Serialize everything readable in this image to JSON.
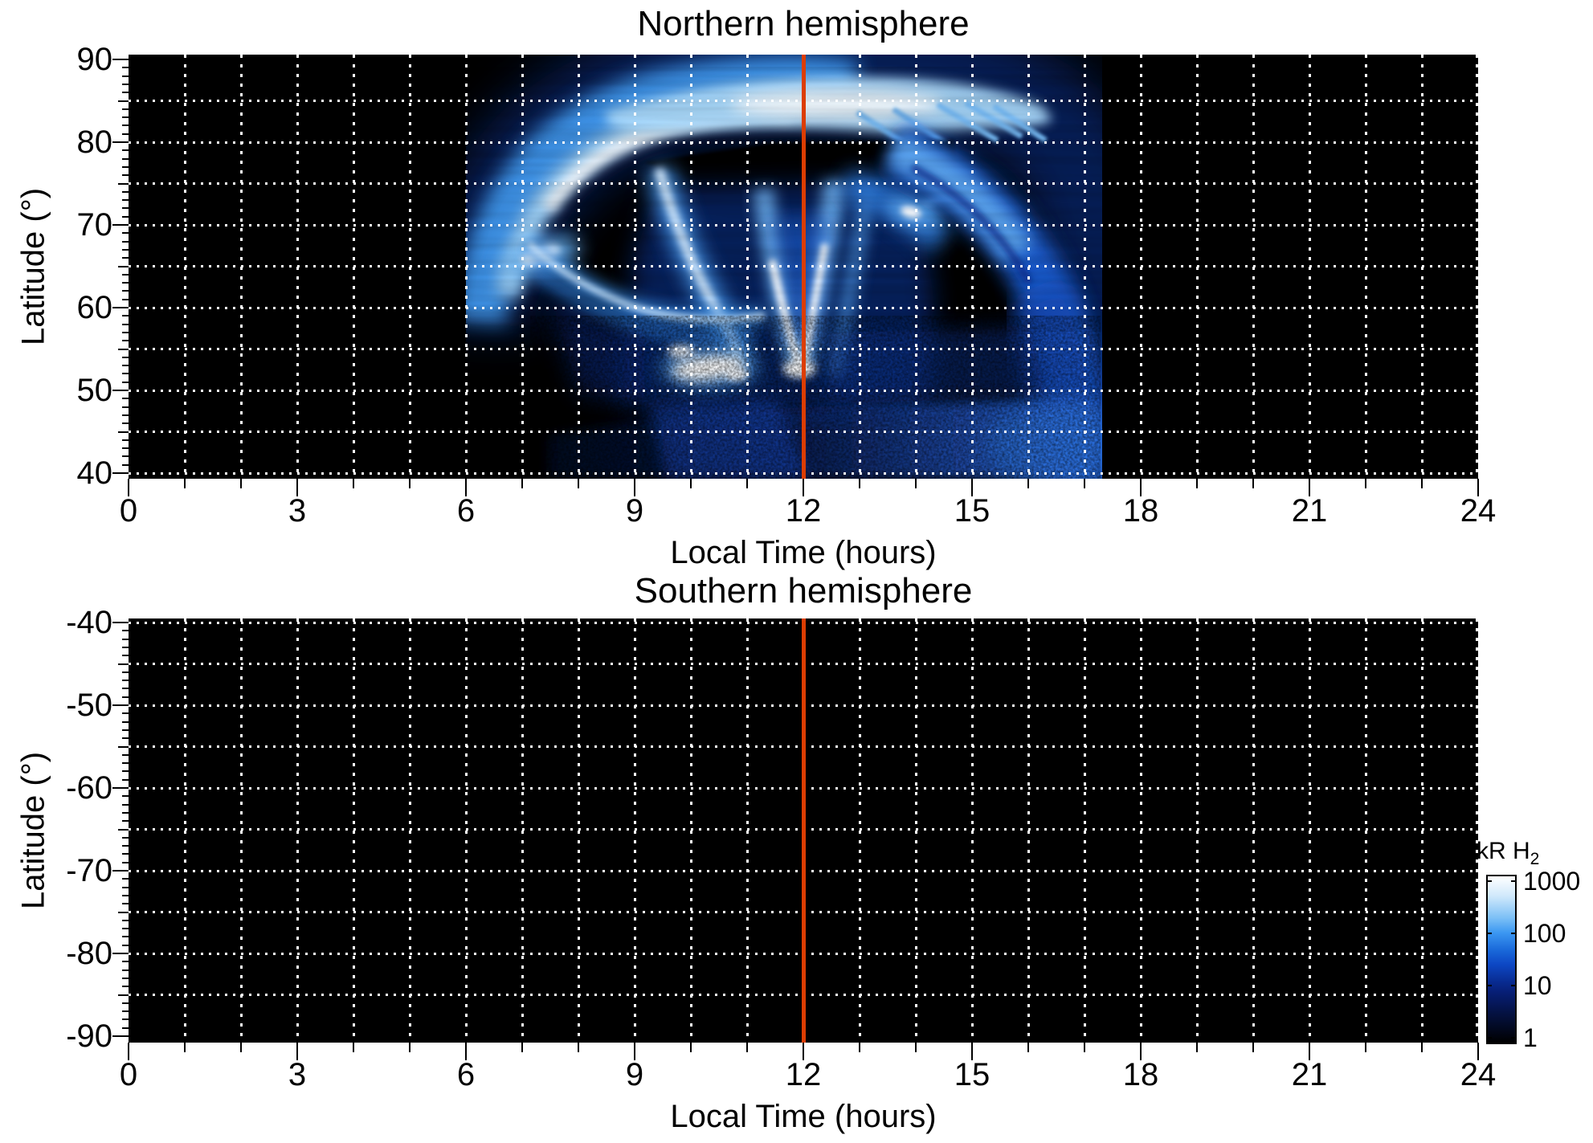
{
  "figure": {
    "kind": "two-panel auroral emission heatmap",
    "background_color": "#ffffff",
    "plot_background_color": "#000000",
    "grid_color": "#ffffff",
    "marker_line_color": "#dc3d02"
  },
  "panels": [
    {
      "id": "north",
      "title": "Northern hemisphere",
      "xlabel": "Local Time (hours)",
      "ylabel": "Latitude (°)",
      "x_tick_labels": [
        "0",
        "3",
        "6",
        "9",
        "12",
        "15",
        "18",
        "21",
        "24"
      ],
      "x_tick_values": [
        0,
        3,
        6,
        9,
        12,
        15,
        18,
        21,
        24
      ],
      "y_tick_labels": [
        "90",
        "80",
        "70",
        "60",
        "50",
        "40"
      ],
      "y_tick_values": [
        90,
        80,
        70,
        60,
        50,
        40
      ],
      "grid_lats": [
        85,
        80,
        75,
        70,
        65,
        60,
        55,
        50,
        45,
        40
      ],
      "marker_line_hour": 12
    },
    {
      "id": "south",
      "title": "Southern hemisphere",
      "xlabel": "Local Time (hours)",
      "ylabel": "Latitude (°)",
      "x_tick_labels": [
        "0",
        "3",
        "6",
        "9",
        "12",
        "15",
        "18",
        "21",
        "24"
      ],
      "x_tick_values": [
        0,
        3,
        6,
        9,
        12,
        15,
        18,
        21,
        24
      ],
      "y_tick_labels": [
        "-40",
        "-50",
        "-60",
        "-70",
        "-80",
        "-90"
      ],
      "y_tick_values": [
        -40,
        -50,
        -60,
        -70,
        -80,
        -90
      ],
      "grid_lats": [
        -40,
        -45,
        -50,
        -55,
        -60,
        -65,
        -70,
        -75,
        -80,
        -85
      ],
      "marker_line_hour": 12
    }
  ],
  "colorbar": {
    "title_main": "kR H",
    "title_subscript": "2",
    "tick_labels": [
      "1000",
      "100",
      "10",
      "1"
    ],
    "scale": "log",
    "min": 1,
    "max": 1000
  },
  "chart_data": [
    {
      "type": "heatmap",
      "title": "Northern hemisphere",
      "xlabel": "Local Time (hours)",
      "ylabel": "Latitude (°)",
      "x_range": [
        0,
        24
      ],
      "y_range": [
        40,
        90
      ],
      "x_grid_step_hours": 1,
      "y_grid_step_deg": 5,
      "grid": "white dotted",
      "value_units": "kR H2 (log color scale, 1 to 1000)",
      "vertical_marker_at_hour": 12,
      "features": [
        {
          "name": "dawn-side auroral oval arc",
          "local_time": [
            6.1,
            10.5
          ],
          "latitude": [
            57,
            85
          ],
          "peak_kR": 1000
        },
        {
          "name": "polar fan band along top",
          "local_time": [
            8.5,
            14.8
          ],
          "latitude": [
            82,
            88
          ],
          "peak_kR": 600
        },
        {
          "name": "dark gap inside oval",
          "local_time": [
            9.7,
            14.6
          ],
          "latitude": [
            75.5,
            79.5
          ],
          "peak_kR": 0
        },
        {
          "name": "bright knot with filament",
          "local_time": [
            7.1,
            9.5
          ],
          "latitude": [
            57,
            68
          ],
          "peak_kR": 1000
        },
        {
          "name": "central bright V-shaped arcs",
          "local_time": [
            9.5,
            13.0
          ],
          "latitude": [
            50,
            76
          ],
          "peak_kR": 1000
        },
        {
          "name": "isolated bright spot",
          "local_time": [
            13.7,
            14.3
          ],
          "latitude": [
            70,
            73
          ],
          "peak_kR": 800
        },
        {
          "name": "dusk-side descending striated band",
          "local_time": [
            13.3,
            17.3
          ],
          "latitude": [
            40,
            78
          ],
          "peak_kR": 150
        },
        {
          "name": "diffuse speckled low-latitude emission",
          "local_time": [
            9.0,
            17.3
          ],
          "latitude": [
            40,
            52
          ],
          "peak_kR": 30
        },
        {
          "name": "sharp emission cutoff",
          "local_time": [
            17.3,
            17.3
          ],
          "latitude": [
            40,
            80
          ],
          "peak_kR": 0
        },
        {
          "name": "no emission",
          "local_time": [
            17.3,
            24.0
          ],
          "latitude": [
            40,
            90
          ],
          "peak_kR": 0
        },
        {
          "name": "no emission",
          "local_time": [
            0.0,
            6.1
          ],
          "latitude": [
            40,
            90
          ],
          "peak_kR": 0
        }
      ]
    },
    {
      "type": "heatmap",
      "title": "Southern hemisphere",
      "xlabel": "Local Time (hours)",
      "ylabel": "Latitude (°)",
      "x_range": [
        0,
        24
      ],
      "y_range": [
        -90,
        -40
      ],
      "x_grid_step_hours": 1,
      "y_grid_step_deg": 5,
      "grid": "white dotted",
      "value_units": "kR H2 (log color scale, 1 to 1000)",
      "vertical_marker_at_hour": 12,
      "features": []
    }
  ]
}
